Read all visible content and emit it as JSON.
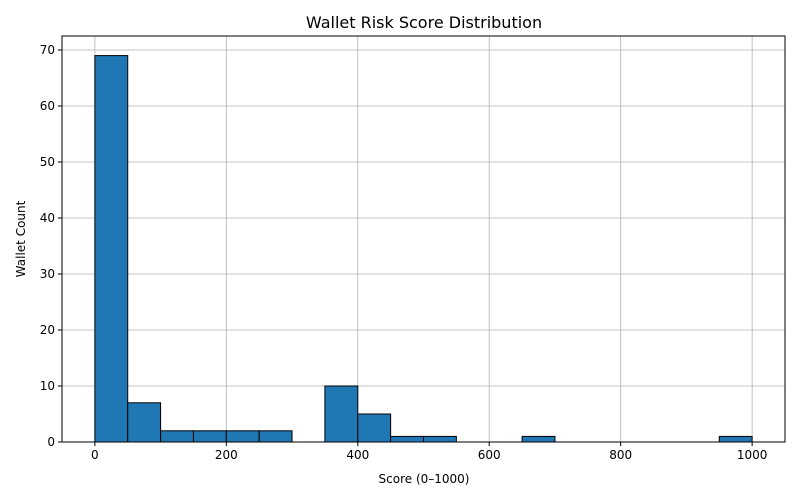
{
  "chart_data": {
    "type": "bar",
    "title": "Wallet Risk Score Distribution",
    "xlabel": "Score (0–1000)",
    "ylabel": "Wallet Count",
    "xlim": [
      -50,
      1050
    ],
    "ylim": [
      0,
      72.5
    ],
    "grid": true,
    "x_ticks": [
      0,
      200,
      400,
      600,
      800,
      1000
    ],
    "y_ticks": [
      0,
      10,
      20,
      30,
      40,
      50,
      60,
      70
    ],
    "bin_width": 50,
    "bins": [
      {
        "start": 0,
        "count": 69
      },
      {
        "start": 50,
        "count": 7
      },
      {
        "start": 100,
        "count": 2
      },
      {
        "start": 150,
        "count": 2
      },
      {
        "start": 200,
        "count": 2
      },
      {
        "start": 250,
        "count": 2
      },
      {
        "start": 300,
        "count": 0
      },
      {
        "start": 350,
        "count": 10
      },
      {
        "start": 400,
        "count": 5
      },
      {
        "start": 450,
        "count": 1
      },
      {
        "start": 500,
        "count": 1
      },
      {
        "start": 550,
        "count": 0
      },
      {
        "start": 600,
        "count": 0
      },
      {
        "start": 650,
        "count": 1
      },
      {
        "start": 700,
        "count": 0
      },
      {
        "start": 750,
        "count": 0
      },
      {
        "start": 800,
        "count": 0
      },
      {
        "start": 850,
        "count": 0
      },
      {
        "start": 900,
        "count": 0
      },
      {
        "start": 950,
        "count": 1
      }
    ],
    "colors": {
      "bar": "#1f77b4",
      "edge": "#000000",
      "grid": "#b0b0b0"
    }
  }
}
